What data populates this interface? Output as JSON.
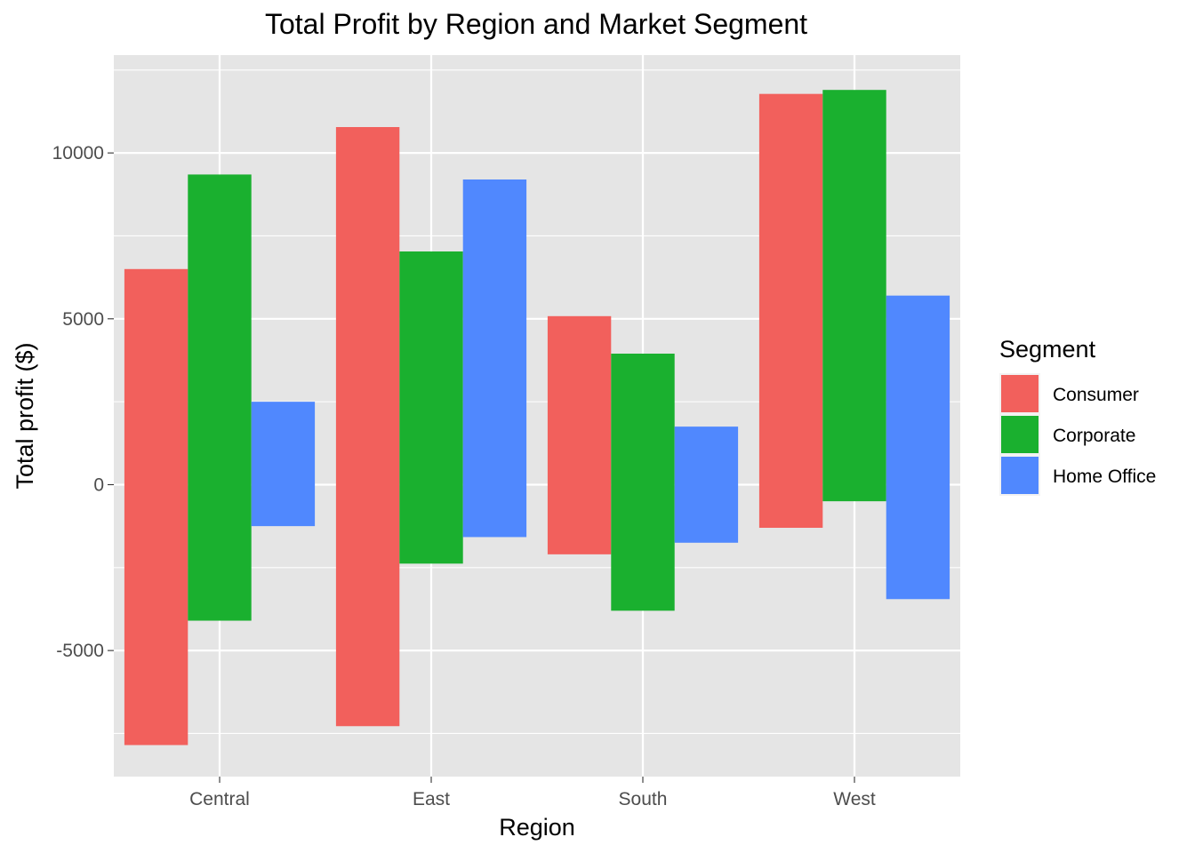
{
  "chart_data": {
    "type": "bar",
    "subtype": "floating-range",
    "title": "Total Profit by Region and Market Segment",
    "xlabel": "Region",
    "ylabel": "Total profit ($)",
    "categories": [
      "Central",
      "East",
      "South",
      "West"
    ],
    "ylim": [
      -8800,
      12950
    ],
    "yticks": [
      -5000,
      0,
      5000,
      10000
    ],
    "ytick_labels": [
      "-5000",
      "0",
      "5000",
      "10000"
    ],
    "grid": true,
    "legend": {
      "title": "Segment",
      "position": "right"
    },
    "series": [
      {
        "name": "Consumer",
        "color": "#F8766D",
        "bar_color": "#F2605C",
        "low": [
          -7850,
          -7280,
          -2100,
          -1300
        ],
        "high": [
          6500,
          10780,
          5080,
          11780
        ]
      },
      {
        "name": "Corporate",
        "color": "#00BA38",
        "bar_color": "#1AB02F",
        "low": [
          -4100,
          -2380,
          -3800,
          -500
        ],
        "high": [
          9350,
          7030,
          3950,
          11900
        ]
      },
      {
        "name": "Home Office",
        "color": "#619CFF",
        "bar_color": "#5088FE",
        "low": [
          -1250,
          -1580,
          -1750,
          -3450
        ],
        "high": [
          2500,
          9200,
          1750,
          5700
        ]
      }
    ]
  }
}
